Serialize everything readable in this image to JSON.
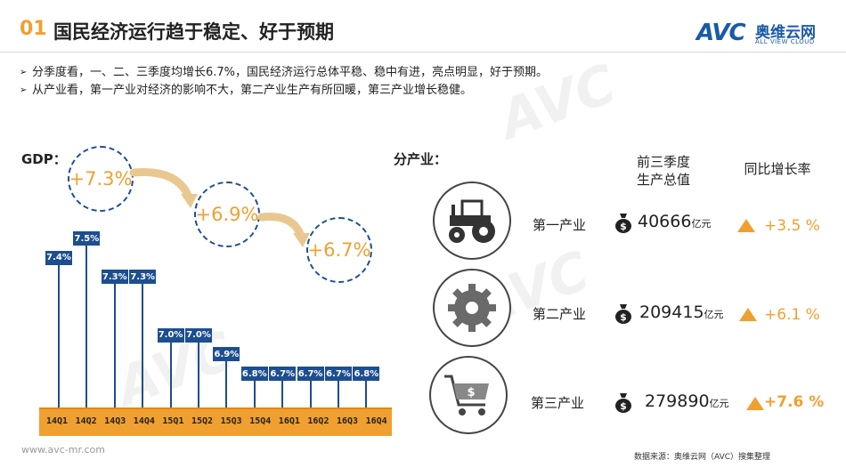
{
  "header": {
    "number": "01",
    "title": "国民经济运行趋于稳定、好于预期"
  },
  "logo": {
    "brand": "AVC",
    "cn": "奥维云网",
    "en": "ALL VIEW CLOUD"
  },
  "bullets": [
    "分季度看，一、二、三季度均增长6.7%，国民经济运行总体平稳、稳中有进，亮点明显，好于预期。",
    "从产业看，第一产业对经济的影响不大，第二产业生产有所回暖，第三产业增长稳健。"
  ],
  "gdp": {
    "label": "GDP：",
    "bubbles": [
      "+7.3%",
      "+6.9%",
      "+6.7%"
    ]
  },
  "chart_data": {
    "type": "bar",
    "categories": [
      "14Q1",
      "14Q2",
      "14Q3",
      "14Q4",
      "15Q1",
      "15Q2",
      "15Q3",
      "15Q4",
      "16Q1",
      "16Q2",
      "16Q3",
      "16Q4"
    ],
    "values": [
      7.4,
      7.5,
      7.3,
      7.3,
      7.0,
      7.0,
      6.9,
      6.8,
      6.7,
      6.7,
      6.7,
      6.8
    ],
    "labels": [
      "7.4%",
      "7.5%",
      "7.3%",
      "7.3%",
      "7.0%",
      "7.0%",
      "6.9%",
      "6.8%",
      "6.7%",
      "6.7%",
      "6.7%",
      "6.8%"
    ],
    "title": "",
    "xlabel": "",
    "ylabel": "",
    "colors": {
      "label_bg": "#1d4e8f",
      "axis_band": "#f0a030"
    }
  },
  "industry": {
    "label": "分产业：",
    "col_value": "前三季度\n生产总值",
    "col_rate": "同比增长率",
    "unit": "亿元",
    "rows": [
      {
        "name": "第一产业",
        "icon": "tractor-icon",
        "value": "40666",
        "rate": "+3.5 %"
      },
      {
        "name": "第二产业",
        "icon": "gear-icon",
        "value": "209415",
        "rate": "+6.1 %"
      },
      {
        "name": "第三产业",
        "icon": "shopping-cart-icon",
        "value": "279890",
        "rate": "+7.6 %"
      }
    ]
  },
  "footer": {
    "website": "www.avc-mr.com",
    "source": "数据来源：奥维云网（AVC）搜集整理"
  },
  "colors": {
    "accent": "#f0a030",
    "brand_blue": "#1d4e8f"
  }
}
